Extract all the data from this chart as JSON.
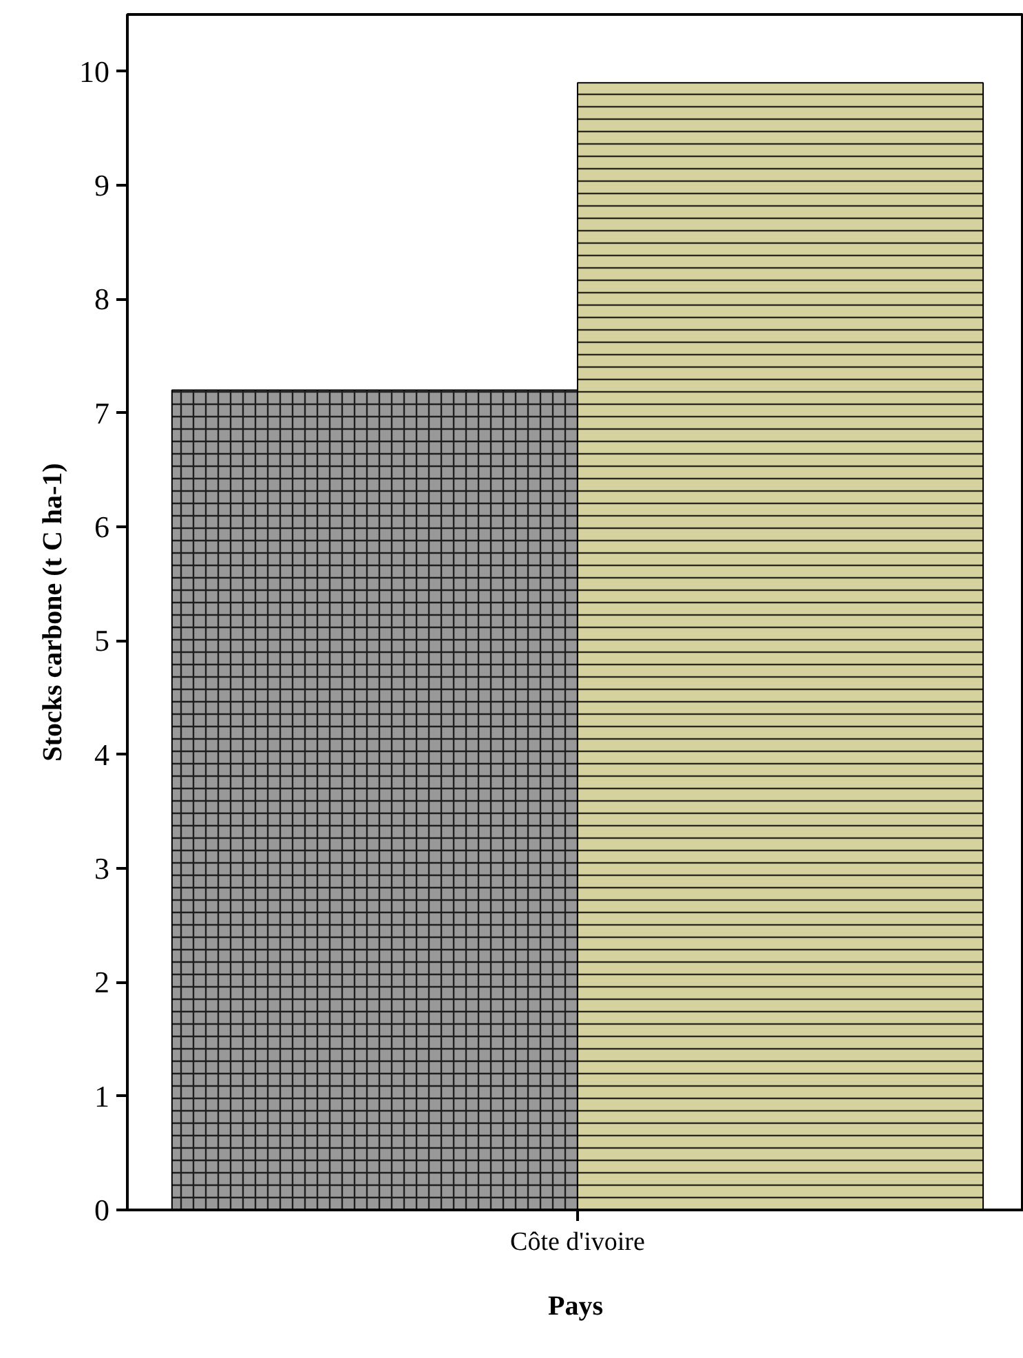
{
  "chart_data": {
    "type": "bar",
    "xlabel": "Pays",
    "ylabel": "Stocks carbone (t C ha-1)",
    "categories": [
      "Côte d'ivoire"
    ],
    "series": [
      {
        "color": "#999999",
        "values": [
          7.2
        ]
      },
      {
        "color": "#d6d2a0",
        "values": [
          9.9
        ]
      }
    ],
    "ylim": [
      0,
      10.5
    ],
    "yticks": [
      0,
      1,
      2,
      3,
      4,
      5,
      6,
      7,
      8,
      9,
      10
    ],
    "grid": false
  }
}
